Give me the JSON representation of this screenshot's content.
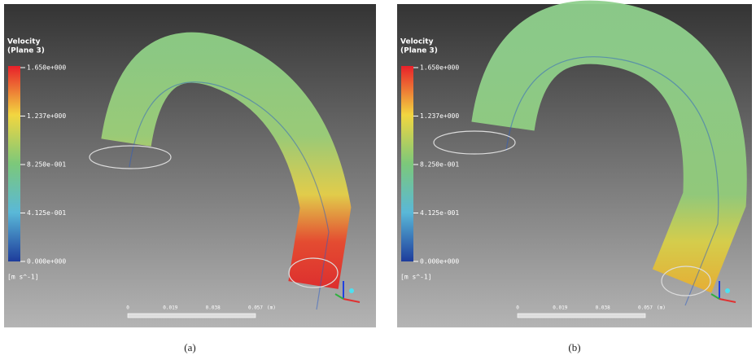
{
  "panels": [
    {
      "legend": {
        "title": "Velocity",
        "subtitle": "(Plane 3)",
        "ticks": [
          "1.650e+000",
          "1.237e+000",
          "8.250e-001",
          "4.125e-001",
          "0.000e+000"
        ],
        "unit": "[m s^-1]"
      },
      "scale": {
        "labels": [
          "0",
          "0.019",
          "0.038",
          "0.057"
        ],
        "unit": "(m)"
      },
      "caption": "(a)"
    },
    {
      "legend": {
        "title": "Velocity",
        "subtitle": "(Plane 3)",
        "ticks": [
          "1.650e+000",
          "1.237e+000",
          "8.250e-001",
          "4.125e-001",
          "0.000e+000"
        ],
        "unit": "[m s^-1]"
      },
      "scale": {
        "labels": [
          "0",
          "0.019",
          "0.038",
          "0.057"
        ],
        "unit": "(m)"
      },
      "caption": "(b)"
    }
  ]
}
